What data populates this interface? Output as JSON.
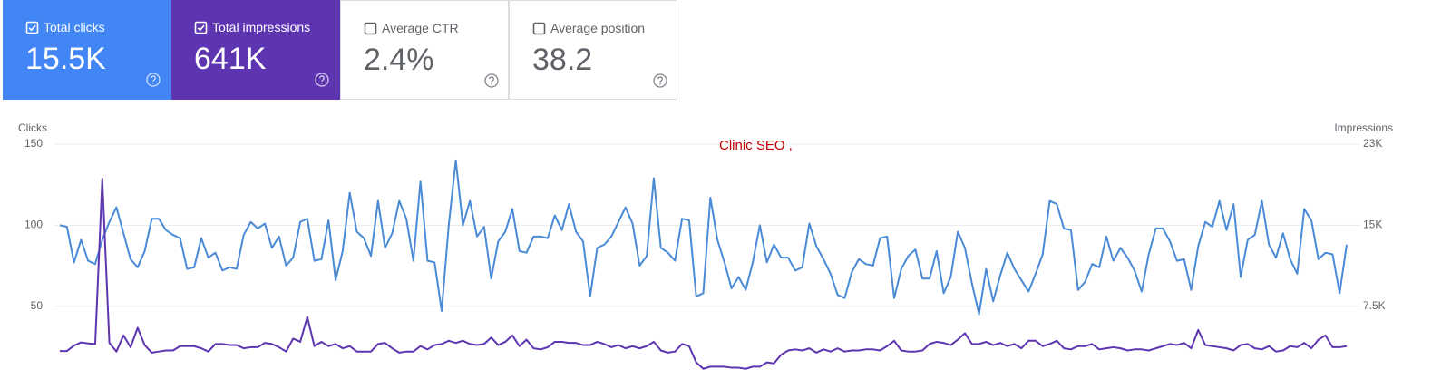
{
  "cards": [
    {
      "label": "Total clicks",
      "value": "15.5K",
      "checked": true,
      "color": "#4285f4"
    },
    {
      "label": "Total impressions",
      "value": "641K",
      "checked": true,
      "color": "#5e35b1"
    },
    {
      "label": "Average CTR",
      "value": "2.4%",
      "checked": false,
      "color": "#ffffff"
    },
    {
      "label": "Average position",
      "value": "38.2",
      "checked": false,
      "color": "#ffffff"
    }
  ],
  "chart_data": {
    "type": "line",
    "y_label": "Clicks",
    "y2_label": "Impressions",
    "annotation": "Clinic SEO ,",
    "ylim": [
      0,
      150
    ],
    "yticks": [
      50,
      100,
      150
    ],
    "y2lim": [
      0,
      22500
    ],
    "y2ticks": [
      {
        "value": 7500,
        "label": "7.5K"
      },
      {
        "value": 15000,
        "label": "15K"
      },
      {
        "value": 22500,
        "label": "23K"
      }
    ],
    "grid": true,
    "series": [
      {
        "color": "#4a8ad6",
        "values": [
          100,
          99,
          77,
          91,
          78,
          76,
          91,
          102,
          111,
          95,
          79,
          74,
          84,
          104,
          104,
          97,
          94,
          92,
          73,
          74,
          92,
          80,
          83,
          72,
          74,
          73,
          94,
          102,
          98,
          101,
          86,
          93,
          75,
          80,
          102,
          104,
          78,
          79,
          103,
          66,
          84,
          120,
          96,
          92,
          81,
          115,
          86,
          95,
          115,
          104,
          78,
          127,
          78,
          77,
          47,
          100,
          140,
          100,
          115,
          93,
          99,
          67,
          90,
          96,
          110,
          84,
          83,
          93,
          93,
          92,
          106,
          97,
          113,
          96,
          90,
          56,
          86,
          88,
          93,
          102,
          111,
          101,
          75,
          81,
          129,
          86,
          83,
          78,
          104,
          103,
          56,
          58,
          117,
          91,
          77,
          61,
          68,
          60,
          77,
          100,
          77,
          88,
          80,
          80,
          72,
          74,
          101,
          87,
          79,
          70,
          57,
          55,
          71,
          79,
          76,
          75,
          92,
          93,
          55,
          73,
          81,
          85,
          67,
          67,
          84,
          58,
          68,
          96,
          86,
          64,
          45,
          73,
          53,
          69,
          83,
          73,
          66,
          59,
          70,
          82,
          115,
          113,
          98,
          97,
          60,
          65,
          76,
          74,
          93,
          78,
          86,
          80,
          72,
          59,
          82,
          98,
          98,
          90,
          78,
          79,
          60,
          87,
          102,
          99,
          115,
          97,
          113,
          68,
          91,
          94,
          115,
          88,
          80,
          95,
          79,
          70,
          110,
          103,
          79,
          83,
          82,
          58,
          88
        ]
      },
      {
        "color": "#5e35b1",
        "axis": "y2",
        "values": [
          3350,
          3350,
          3850,
          4150,
          4050,
          4000,
          19300,
          4100,
          3300,
          4800,
          3700,
          5500,
          3900,
          3200,
          3300,
          3400,
          3400,
          3800,
          3800,
          3800,
          3600,
          3300,
          4000,
          4000,
          3900,
          3900,
          3600,
          3700,
          3700,
          4100,
          4000,
          3700,
          3300,
          4500,
          4200,
          6500,
          3800,
          4200,
          3800,
          4000,
          3600,
          3800,
          3300,
          3300,
          3300,
          4000,
          4100,
          3600,
          3200,
          3300,
          3300,
          3800,
          3500,
          3900,
          4000,
          4300,
          4100,
          4300,
          4000,
          3900,
          4000,
          4600,
          3900,
          4200,
          4800,
          3800,
          4400,
          3600,
          3500,
          3700,
          4200,
          4200,
          4100,
          4100,
          3900,
          3900,
          4200,
          4000,
          3700,
          3900,
          3600,
          3800,
          3600,
          3800,
          4200,
          3400,
          3200,
          3300,
          4000,
          3800,
          2300,
          1700,
          1900,
          1900,
          1900,
          1800,
          1800,
          1700,
          1900,
          1900,
          2300,
          2200,
          3000,
          3400,
          3500,
          3400,
          3600,
          3200,
          3500,
          3300,
          3600,
          3300,
          3400,
          3400,
          3500,
          3500,
          3400,
          3800,
          4300,
          3400,
          3300,
          3300,
          3400,
          4000,
          4200,
          4100,
          3900,
          4400,
          5000,
          4000,
          4000,
          4200,
          3900,
          4100,
          3800,
          4000,
          3600,
          4300,
          4300,
          3800,
          4000,
          4300,
          3600,
          3500,
          3800,
          3800,
          4000,
          3500,
          3600,
          3700,
          3600,
          3400,
          3500,
          3500,
          3400,
          3600,
          3800,
          4000,
          3900,
          4100,
          3600,
          5300,
          3900,
          3800,
          3700,
          3600,
          3400,
          3900,
          4000,
          3600,
          3500,
          3800,
          3300,
          3400,
          3800,
          3700,
          4100,
          3600,
          4400,
          4800,
          3700,
          3700,
          3800
        ]
      }
    ]
  }
}
